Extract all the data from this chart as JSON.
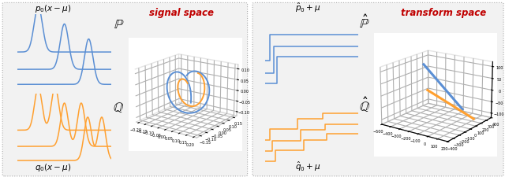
{
  "blue_color": "#5B8FD4",
  "orange_color": "#FFA030",
  "red_color": "#C00000",
  "title_left": "signal space",
  "title_right": "transform space",
  "label_p0": "$p_0(x-\\mu)$",
  "label_q0": "$q_0(x-\\mu)$",
  "label_p0hat": "$\\hat{p}_0 + \\mu$",
  "label_q0hat": "$\\hat{q}_0 + \\mu$",
  "label_P": "$\\mathbb{P}$",
  "label_Q": "$\\mathbb{Q}$",
  "label_Phat": "$\\hat{\\mathbb{P}}$",
  "label_Qhat": "$\\hat{\\mathbb{Q}}$",
  "panel_bg": "#F2F2F2"
}
